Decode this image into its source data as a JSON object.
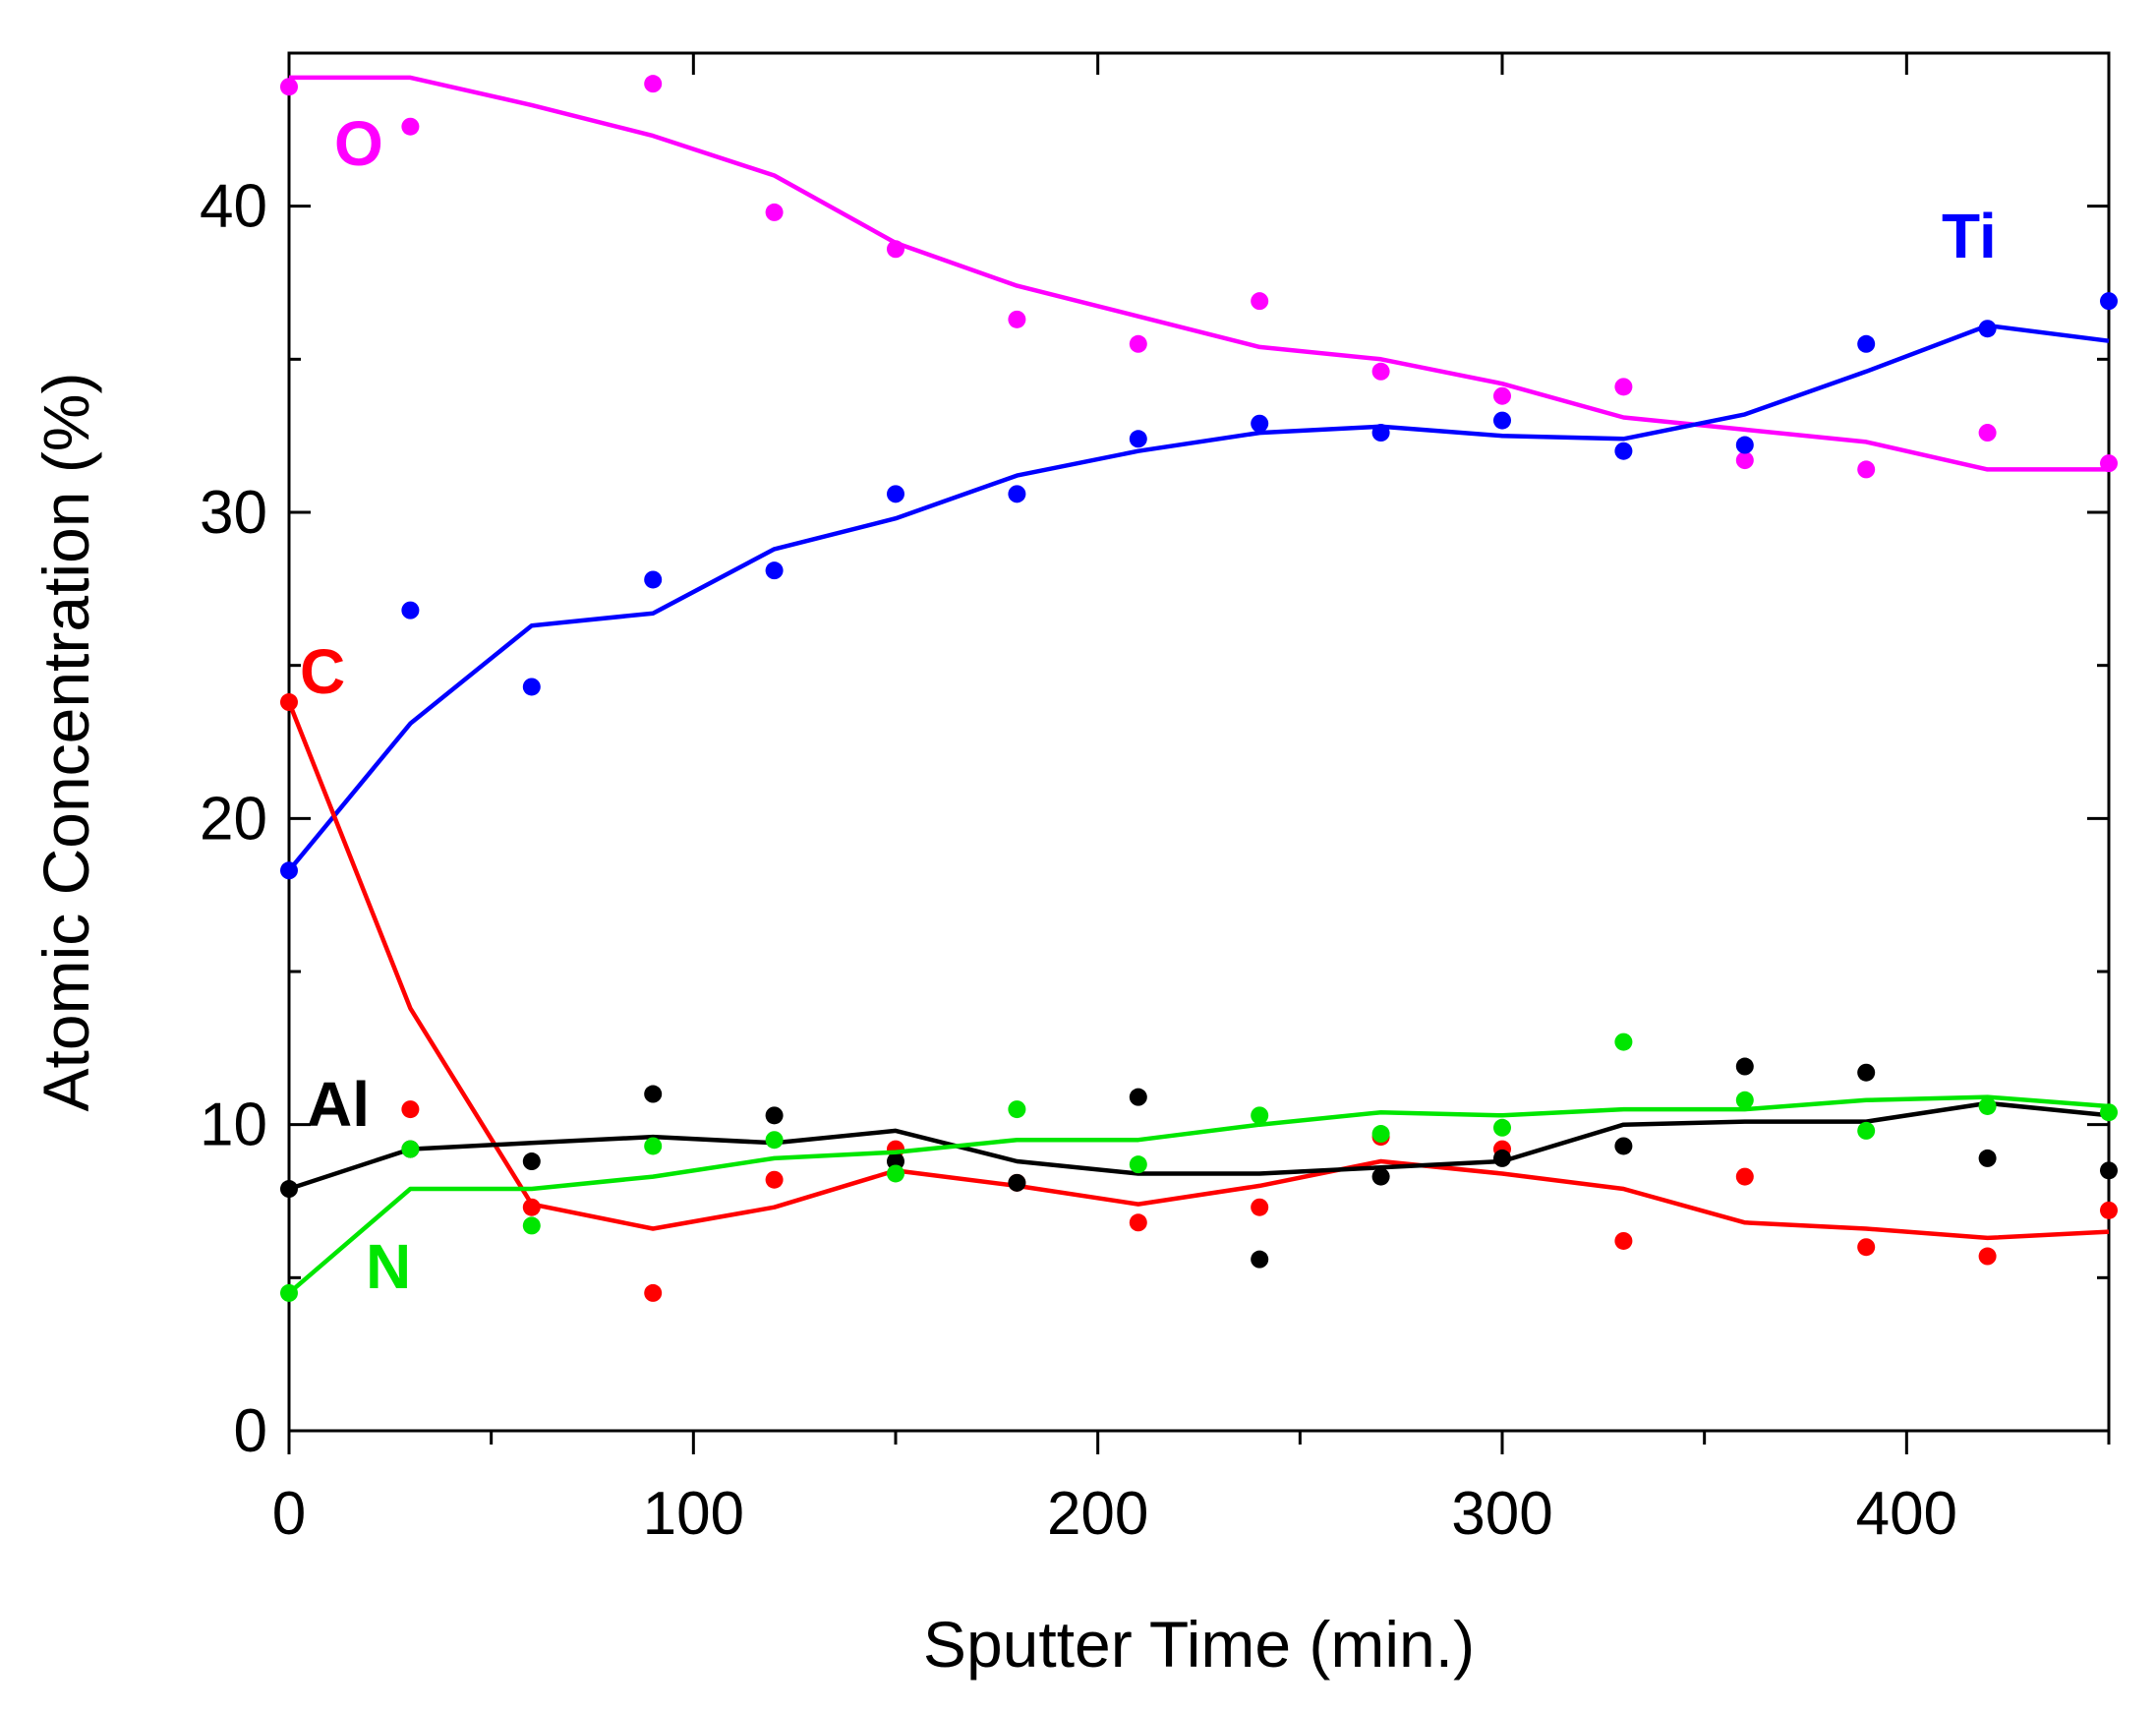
{
  "chart_data": {
    "type": "line",
    "title": "",
    "xlabel": "Sputter Time (min.)",
    "ylabel": "Atomic Concentration (%)",
    "xlim": [
      0,
      450
    ],
    "ylim": [
      0,
      45
    ],
    "x_ticks": [
      0,
      100,
      200,
      300,
      400
    ],
    "y_ticks": [
      0,
      10,
      20,
      30,
      40
    ],
    "x_tick_labels": [
      "0",
      "100",
      "200",
      "300",
      "400"
    ],
    "y_tick_labels": [
      "0",
      "10",
      "20",
      "30",
      "40"
    ],
    "x_minor_step": 50,
    "y_minor_step": 5,
    "grid": false,
    "series": [
      {
        "name": "O",
        "label": "O",
        "color": "#ff00ff",
        "points": [
          [
            0,
            43.9
          ],
          [
            30,
            42.6
          ],
          [
            90,
            44
          ],
          [
            120,
            39.8
          ],
          [
            150,
            38.6
          ],
          [
            180,
            36.3
          ],
          [
            210,
            35.5
          ],
          [
            240,
            36.9
          ],
          [
            270,
            34.6
          ],
          [
            300,
            33.8
          ],
          [
            330,
            34.1
          ],
          [
            360,
            31.7
          ],
          [
            390,
            31.4
          ],
          [
            420,
            32.6
          ],
          [
            450,
            31.6
          ]
        ],
        "line": [
          [
            0,
            44.2
          ],
          [
            30,
            44.2
          ],
          [
            60,
            43.3
          ],
          [
            90,
            42.3
          ],
          [
            120,
            41
          ],
          [
            150,
            38.8
          ],
          [
            180,
            37.4
          ],
          [
            210,
            36.4
          ],
          [
            240,
            35.4
          ],
          [
            270,
            35
          ],
          [
            300,
            34.2
          ],
          [
            330,
            33.1
          ],
          [
            360,
            32.7
          ],
          [
            390,
            32.3
          ],
          [
            420,
            31.4
          ],
          [
            450,
            31.4
          ]
        ]
      },
      {
        "name": "Ti",
        "label": "Ti",
        "color": "#0000ff",
        "points": [
          [
            0,
            18.3
          ],
          [
            30,
            26.8
          ],
          [
            60,
            24.3
          ],
          [
            90,
            27.8
          ],
          [
            120,
            28.1
          ],
          [
            150,
            30.6
          ],
          [
            180,
            30.6
          ],
          [
            210,
            32.4
          ],
          [
            240,
            32.9
          ],
          [
            270,
            32.6
          ],
          [
            300,
            33
          ],
          [
            330,
            32
          ],
          [
            360,
            32.2
          ],
          [
            390,
            35.5
          ],
          [
            420,
            36
          ],
          [
            450,
            36.9
          ]
        ],
        "line": [
          [
            0,
            18.3
          ],
          [
            30,
            23.1
          ],
          [
            60,
            26.3
          ],
          [
            90,
            26.7
          ],
          [
            120,
            28.8
          ],
          [
            150,
            29.8
          ],
          [
            180,
            31.2
          ],
          [
            210,
            32
          ],
          [
            240,
            32.6
          ],
          [
            270,
            32.8
          ],
          [
            300,
            32.5
          ],
          [
            330,
            32.4
          ],
          [
            360,
            33.2
          ],
          [
            390,
            34.6
          ],
          [
            420,
            36.1
          ],
          [
            450,
            35.6
          ]
        ]
      },
      {
        "name": "C",
        "label": "C",
        "color": "#ff0000",
        "points": [
          [
            0,
            23.8
          ],
          [
            30,
            10.5
          ],
          [
            60,
            7.3
          ],
          [
            90,
            4.5
          ],
          [
            120,
            8.2
          ],
          [
            150,
            9.2
          ],
          [
            180,
            8.1
          ],
          [
            210,
            6.8
          ],
          [
            240,
            7.3
          ],
          [
            270,
            9.6
          ],
          [
            300,
            9.2
          ],
          [
            330,
            6.2
          ],
          [
            360,
            8.3
          ],
          [
            390,
            6
          ],
          [
            420,
            5.7
          ],
          [
            450,
            7.2
          ]
        ],
        "line": [
          [
            0,
            23.8
          ],
          [
            30,
            13.8
          ],
          [
            60,
            7.4
          ],
          [
            90,
            6.6
          ],
          [
            120,
            7.3
          ],
          [
            150,
            8.5
          ],
          [
            180,
            8
          ],
          [
            210,
            7.4
          ],
          [
            240,
            8
          ],
          [
            270,
            8.8
          ],
          [
            300,
            8.4
          ],
          [
            330,
            7.9
          ],
          [
            360,
            6.8
          ],
          [
            390,
            6.6
          ],
          [
            420,
            6.3
          ],
          [
            450,
            6.5
          ]
        ]
      },
      {
        "name": "Al",
        "label": "Al",
        "color": "#000000",
        "points": [
          [
            0,
            7.9
          ],
          [
            30,
            9.2
          ],
          [
            60,
            8.8
          ],
          [
            90,
            11
          ],
          [
            120,
            10.3
          ],
          [
            150,
            8.8
          ],
          [
            180,
            8.1
          ],
          [
            210,
            10.9
          ],
          [
            240,
            5.6
          ],
          [
            270,
            8.3
          ],
          [
            300,
            8.9
          ],
          [
            330,
            9.3
          ],
          [
            360,
            11.9
          ],
          [
            390,
            11.7
          ],
          [
            420,
            8.9
          ],
          [
            450,
            8.5
          ]
        ],
        "line": [
          [
            0,
            7.9
          ],
          [
            30,
            9.2
          ],
          [
            60,
            9.4
          ],
          [
            90,
            9.6
          ],
          [
            120,
            9.4
          ],
          [
            150,
            9.8
          ],
          [
            180,
            8.8
          ],
          [
            210,
            8.4
          ],
          [
            240,
            8.4
          ],
          [
            270,
            8.6
          ],
          [
            300,
            8.8
          ],
          [
            330,
            10
          ],
          [
            360,
            10.1
          ],
          [
            390,
            10.1
          ],
          [
            420,
            10.7
          ],
          [
            450,
            10.3
          ]
        ]
      },
      {
        "name": "N",
        "label": "N",
        "color": "#00e600",
        "points": [
          [
            0,
            4.5
          ],
          [
            30,
            9.2
          ],
          [
            60,
            6.7
          ],
          [
            90,
            9.3
          ],
          [
            120,
            9.5
          ],
          [
            150,
            8.4
          ],
          [
            180,
            10.5
          ],
          [
            210,
            8.7
          ],
          [
            240,
            10.3
          ],
          [
            270,
            9.7
          ],
          [
            300,
            9.9
          ],
          [
            330,
            12.7
          ],
          [
            360,
            10.8
          ],
          [
            390,
            9.8
          ],
          [
            420,
            10.6
          ],
          [
            450,
            10.4
          ]
        ],
        "line": [
          [
            0,
            4.5
          ],
          [
            30,
            7.9
          ],
          [
            60,
            7.9
          ],
          [
            90,
            8.3
          ],
          [
            120,
            8.9
          ],
          [
            150,
            9.1
          ],
          [
            180,
            9.5
          ],
          [
            210,
            9.5
          ],
          [
            240,
            10
          ],
          [
            270,
            10.4
          ],
          [
            300,
            10.3
          ],
          [
            330,
            10.5
          ],
          [
            360,
            10.5
          ],
          [
            390,
            10.8
          ],
          [
            420,
            10.9
          ],
          [
            450,
            10.6
          ]
        ]
      }
    ]
  }
}
